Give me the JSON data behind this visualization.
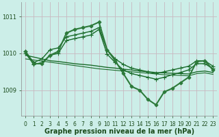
{
  "title": "Graphe pression niveau de la mer (hPa)",
  "bg_color": "#cceee8",
  "plot_bg_color": "#cceee8",
  "grid_color": "#b8d8d0",
  "xlim": [
    -0.5,
    23.5
  ],
  "ylim": [
    1008.3,
    1011.4
  ],
  "yticks": [
    1009,
    1010,
    1011
  ],
  "xticks": [
    0,
    1,
    2,
    3,
    4,
    5,
    6,
    7,
    8,
    9,
    10,
    11,
    12,
    13,
    14,
    15,
    16,
    17,
    18,
    19,
    20,
    21,
    22,
    23
  ],
  "series": [
    {
      "x": [
        0,
        1,
        2,
        3,
        4,
        5,
        6,
        7,
        8,
        9,
        10,
        11,
        12,
        13,
        14,
        15,
        16,
        17,
        18,
        19,
        20,
        21,
        22,
        23
      ],
      "y": [
        1010.05,
        1009.75,
        1009.85,
        1010.1,
        1010.15,
        1010.45,
        1010.5,
        1010.55,
        1010.6,
        1010.7,
        1010.1,
        1009.85,
        1009.7,
        1009.6,
        1009.55,
        1009.5,
        1009.45,
        1009.5,
        1009.55,
        1009.6,
        1009.65,
        1009.8,
        1009.8,
        1009.65
      ],
      "color": "#1a6b2a",
      "lw": 1.0,
      "marker": "+",
      "ms": 4
    },
    {
      "x": [
        0,
        1,
        2,
        3,
        4,
        5,
        6,
        7,
        8,
        9,
        10,
        11,
        12,
        13,
        14,
        15,
        16,
        17,
        18,
        19,
        20,
        21,
        22,
        23
      ],
      "y": [
        1010.0,
        1009.7,
        1009.75,
        1009.95,
        1010.0,
        1010.35,
        1010.4,
        1010.45,
        1010.5,
        1010.65,
        1009.98,
        1009.75,
        1009.55,
        1009.45,
        1009.4,
        1009.35,
        1009.3,
        1009.35,
        1009.42,
        1009.48,
        1009.55,
        1009.72,
        1009.72,
        1009.58
      ],
      "color": "#1a6b2a",
      "lw": 1.0,
      "marker": "+",
      "ms": 4
    },
    {
      "x": [
        0,
        1,
        2,
        3,
        4,
        5,
        6,
        7,
        8,
        9,
        10,
        11,
        12,
        13,
        14,
        15,
        16,
        17,
        18,
        19,
        20,
        21,
        22,
        23
      ],
      "y": [
        1010.05,
        1009.72,
        1009.72,
        1009.95,
        1010.05,
        1010.55,
        1010.65,
        1010.7,
        1010.75,
        1010.85,
        1010.1,
        1009.8,
        1009.45,
        1009.1,
        1009.0,
        1008.75,
        1008.6,
        1008.95,
        1009.05,
        1009.2,
        1009.35,
        1009.78,
        1009.8,
        1009.55
      ],
      "color": "#2d7a3a",
      "lw": 1.5,
      "marker": "D",
      "ms": 2.5
    },
    {
      "x": [
        0,
        1,
        2,
        3,
        4,
        5,
        6,
        7,
        8,
        9,
        10,
        11,
        12,
        13,
        14,
        15,
        16,
        17,
        18,
        19,
        20,
        21,
        22,
        23
      ],
      "y": [
        1009.95,
        1009.9,
        1009.85,
        1009.8,
        1009.78,
        1009.75,
        1009.72,
        1009.7,
        1009.68,
        1009.65,
        1009.62,
        1009.6,
        1009.57,
        1009.55,
        1009.52,
        1009.5,
        1009.48,
        1009.47,
        1009.46,
        1009.45,
        1009.44,
        1009.5,
        1009.52,
        1009.48
      ],
      "color": "#1a6b2a",
      "lw": 1.0,
      "marker": null,
      "ms": 0
    },
    {
      "x": [
        0,
        1,
        2,
        3,
        4,
        5,
        6,
        7,
        8,
        9,
        10,
        11,
        12,
        13,
        14,
        15,
        16,
        17,
        18,
        19,
        20,
        21,
        22,
        23
      ],
      "y": [
        1009.85,
        1009.82,
        1009.79,
        1009.76,
        1009.73,
        1009.7,
        1009.67,
        1009.64,
        1009.61,
        1009.58,
        1009.56,
        1009.54,
        1009.52,
        1009.5,
        1009.48,
        1009.46,
        1009.44,
        1009.42,
        1009.41,
        1009.4,
        1009.39,
        1009.45,
        1009.47,
        1009.43
      ],
      "color": "#1a6b2a",
      "lw": 0.8,
      "marker": null,
      "ms": 0
    }
  ],
  "tick_fontsize": 6,
  "label_fontsize": 7,
  "tick_color": "#1a4a1a",
  "label_color": "#1a4a1a"
}
